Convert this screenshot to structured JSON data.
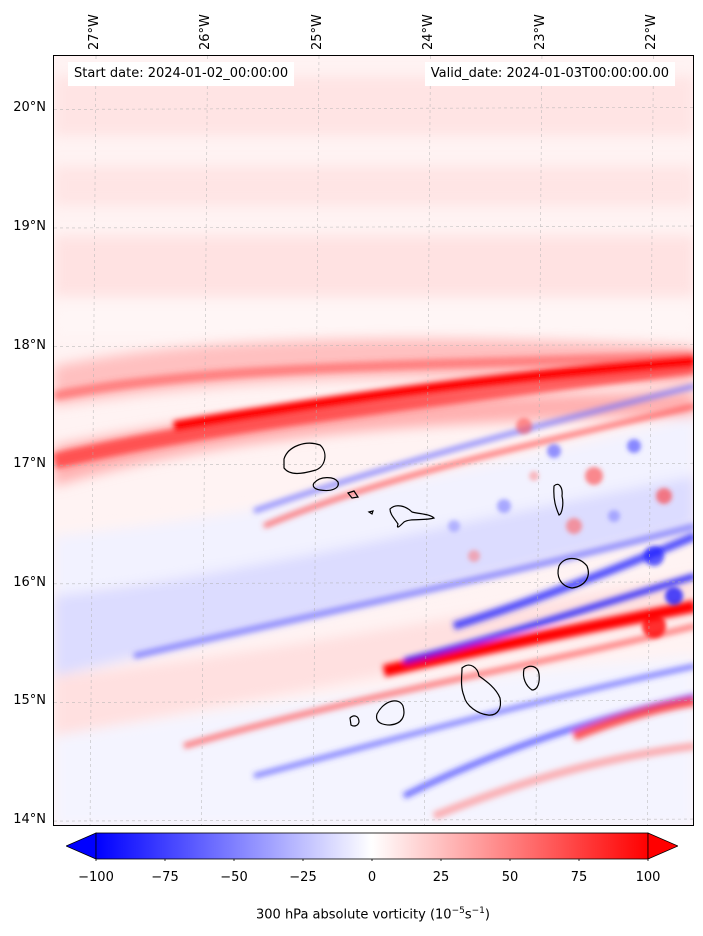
{
  "map": {
    "start_label": "Start date: 2024-01-02_00:00:00",
    "valid_label": "Valid_date: 2024-01-03T00:00:00.00",
    "lon_labels": [
      "27°W",
      "26°W",
      "25°W",
      "24°W",
      "23°W",
      "22°W"
    ],
    "lat_labels": [
      "20°N",
      "19°N",
      "18°N",
      "17°N",
      "16°N",
      "15°N",
      "14°N"
    ],
    "lon_range": [
      -27.35,
      -21.6
    ],
    "lat_range": [
      13.95,
      20.45
    ],
    "grid": true,
    "colormap": "bwr",
    "colors": {
      "negative": "#0000ff",
      "neutral": "#ffffff",
      "positive": "#ff0000",
      "coastline": "#000000"
    }
  },
  "colorbar": {
    "tick_labels": [
      "−100",
      "−75",
      "−50",
      "−25",
      "0",
      "25",
      "50",
      "75",
      "100"
    ],
    "ticks": [
      -100,
      -75,
      -50,
      -25,
      0,
      25,
      50,
      75,
      100
    ],
    "range": [
      -100,
      100
    ],
    "extend": "both",
    "label_main": "300 hPa absolute vorticity (10",
    "label_exp1": "−5",
    "label_mid": "s",
    "label_exp2": "−1",
    "label_end": ")"
  }
}
